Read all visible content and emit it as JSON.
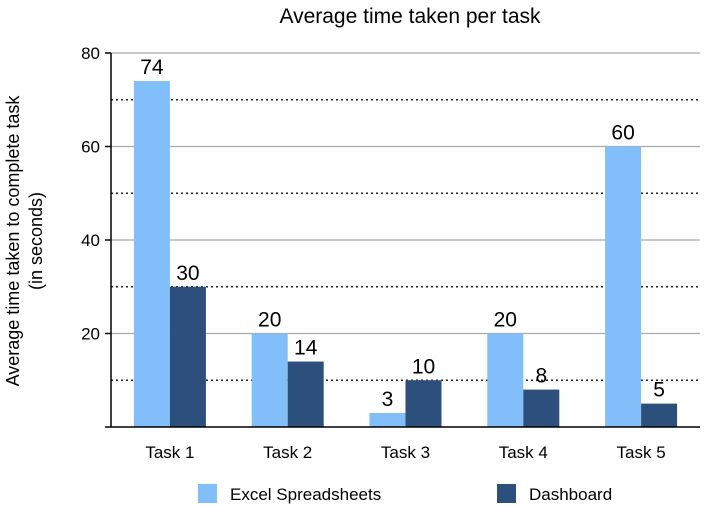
{
  "chart_data": {
    "type": "bar",
    "title": "Average time taken per task",
    "ylabel": "Average time taken to complete task",
    "ylabel_sub": "(in seconds)",
    "xlabel": "",
    "categories": [
      "Task 1",
      "Task 2",
      "Task 3",
      "Task 4",
      "Task 5"
    ],
    "series": [
      {
        "name": "Excel Spreadsheets",
        "values": [
          74,
          20,
          3,
          20,
          60
        ],
        "color": "#82BEFA"
      },
      {
        "name": "Dashboard",
        "values": [
          30,
          14,
          10,
          8,
          5
        ],
        "color": "#2C4F7C"
      }
    ],
    "ylim": [
      0,
      80
    ],
    "yticks": [
      0,
      20,
      40,
      60,
      80
    ],
    "ytick_labels": [
      "",
      "20",
      "40",
      "60",
      "80"
    ],
    "gridlines": {
      "solid": [
        20,
        40,
        60,
        80
      ],
      "dotted": [
        10,
        30,
        50,
        70
      ]
    },
    "legend_position": "bottom"
  }
}
